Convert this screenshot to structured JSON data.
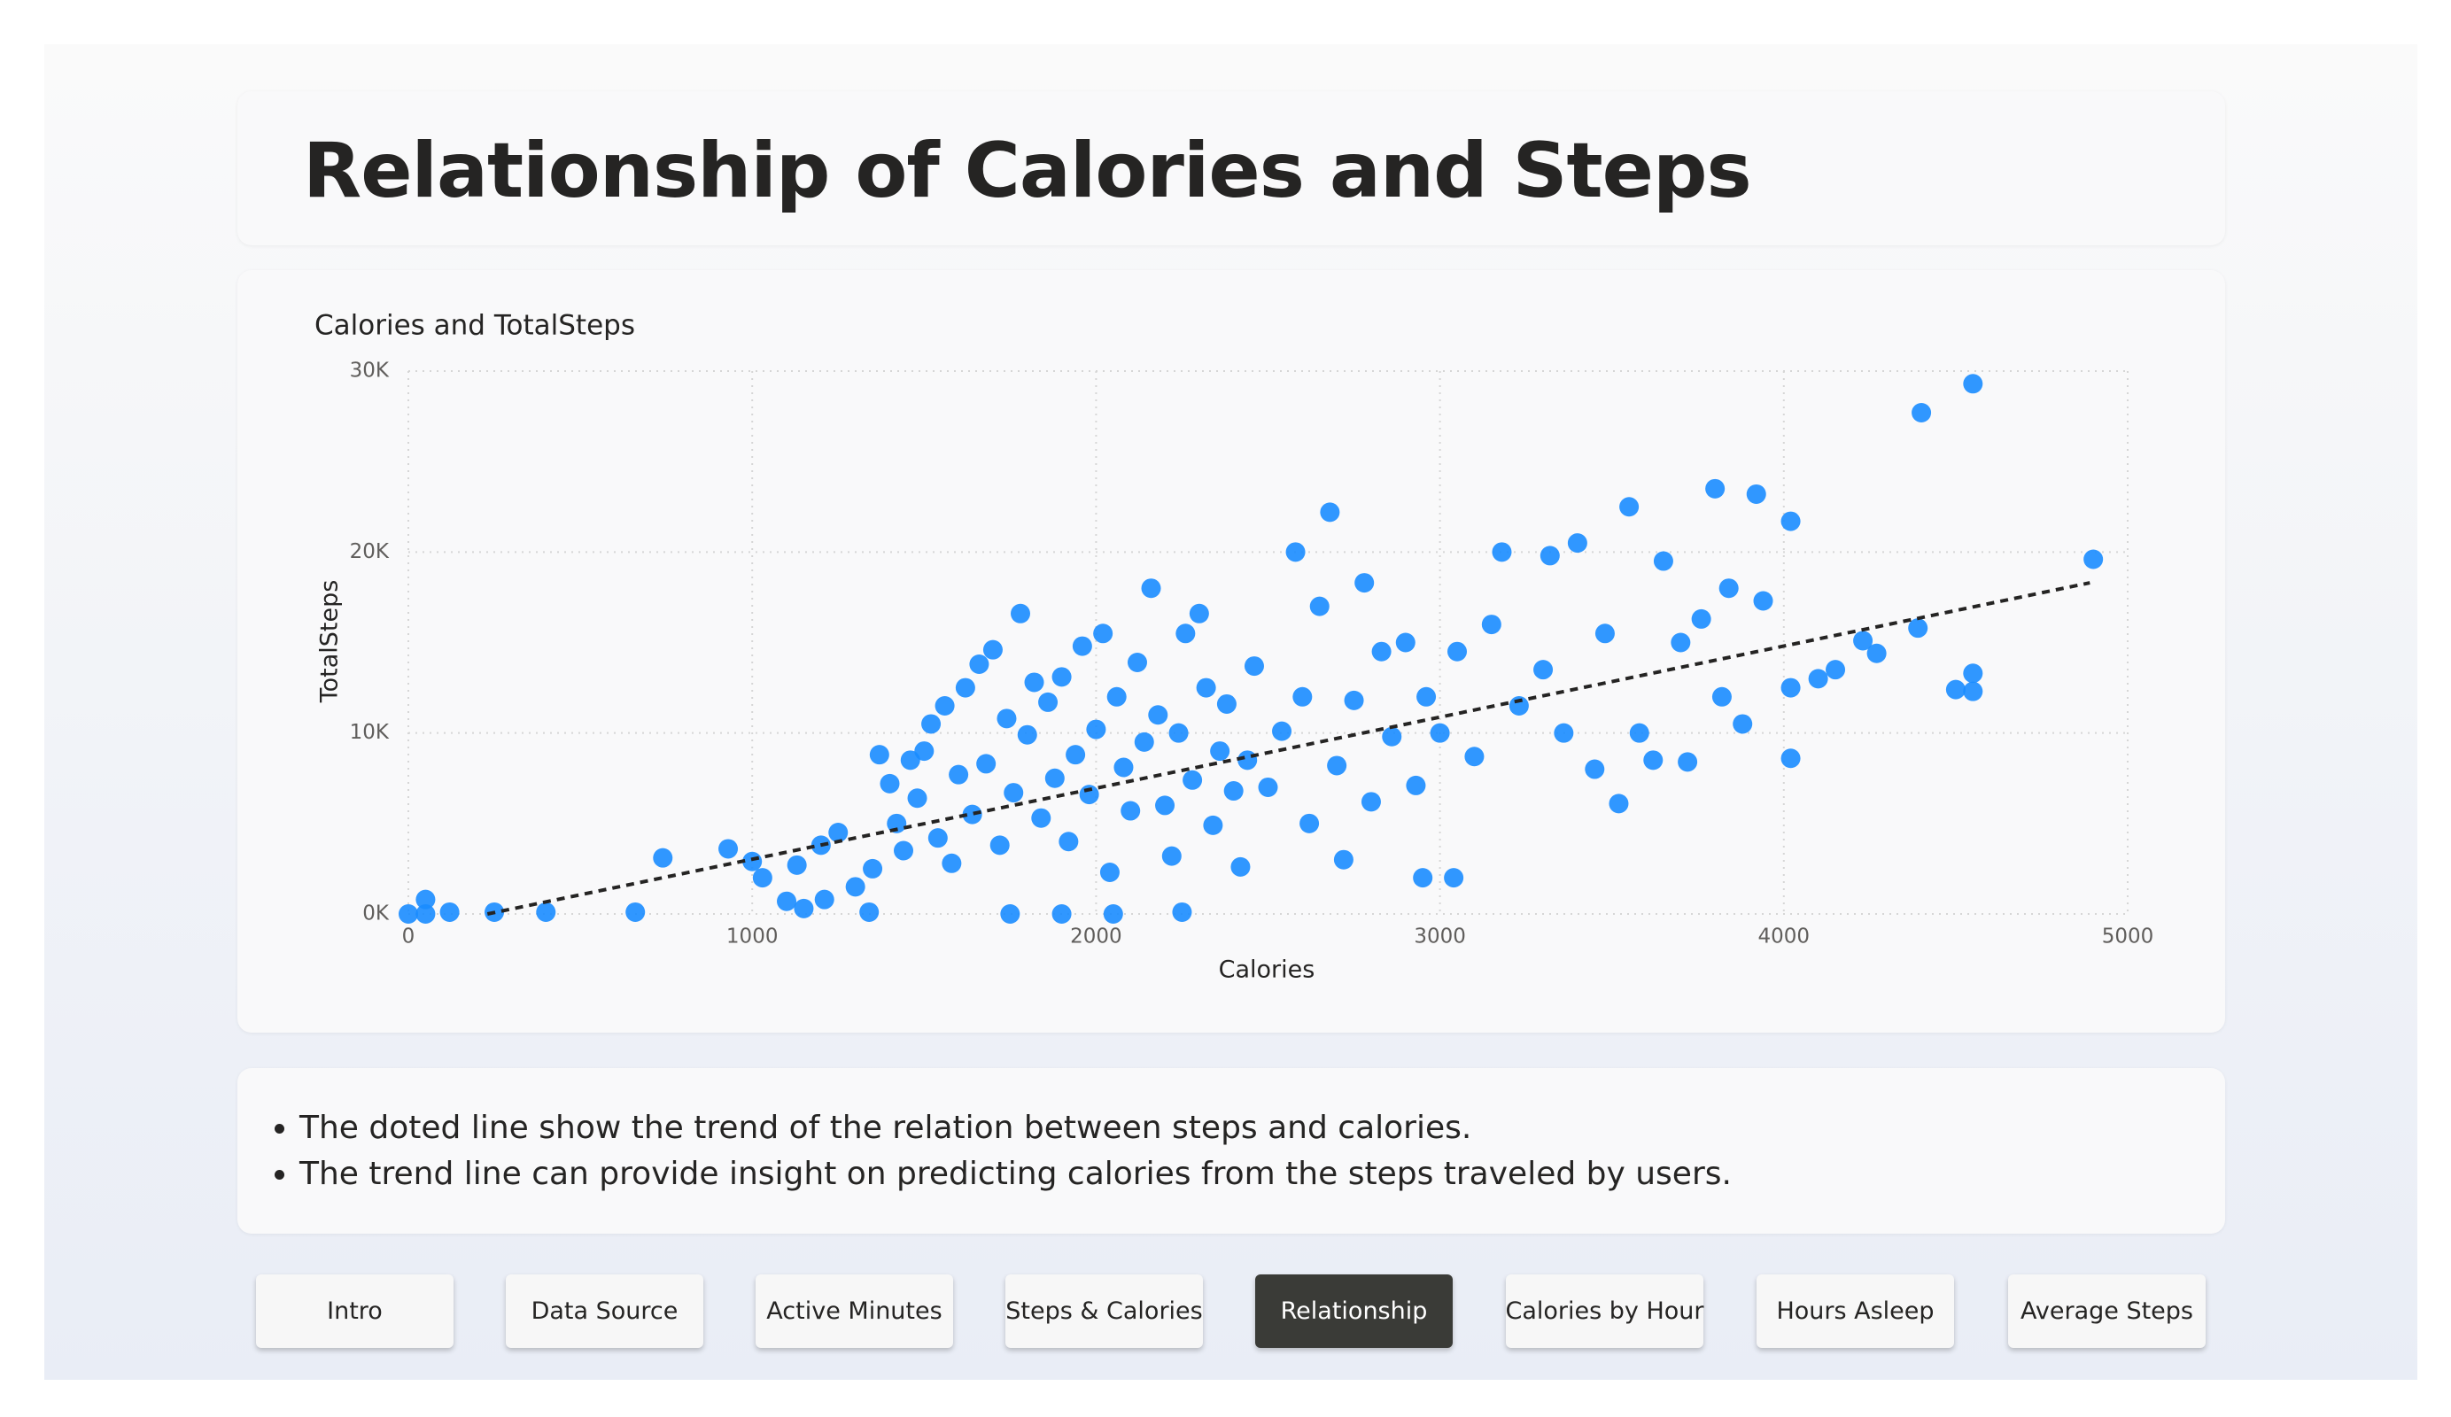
{
  "header": {
    "title": "Relationship of Calories and Steps"
  },
  "chart_data": {
    "type": "scatter",
    "title": "Calories and TotalSteps",
    "x_label": "Calories",
    "y_label": "TotalSteps",
    "color": "#1a8cff",
    "grid": true,
    "xlim": [
      0,
      5000
    ],
    "xticks": [
      0,
      1000,
      2000,
      3000,
      4000,
      5000
    ],
    "ylim": [
      0,
      30000
    ],
    "yticks": [
      {
        "value": 0,
        "label": "0K"
      },
      {
        "value": 10000,
        "label": "10K"
      },
      {
        "value": 20000,
        "label": "20K"
      },
      {
        "value": 30000,
        "label": "30K"
      }
    ],
    "x": [
      0,
      50,
      50,
      120,
      250,
      400,
      660,
      740,
      930,
      1000,
      1030,
      1100,
      1130,
      1150,
      1200,
      1210,
      1250,
      1300,
      1340,
      1350,
      1370,
      1400,
      1420,
      1440,
      1460,
      1480,
      1500,
      1520,
      1540,
      1560,
      1580,
      1600,
      1620,
      1640,
      1660,
      1680,
      1700,
      1720,
      1740,
      1760,
      1780,
      1800,
      1820,
      1840,
      1860,
      1880,
      1900,
      1920,
      1940,
      1960,
      1980,
      2000,
      2020,
      2040,
      2060,
      2080,
      2100,
      2120,
      2140,
      2160,
      2180,
      2200,
      2220,
      2240,
      2260,
      2280,
      2300,
      2320,
      2340,
      2360,
      2380,
      2400,
      2420,
      2440,
      2460,
      2500,
      2540,
      2580,
      2600,
      2620,
      2650,
      2680,
      2700,
      2720,
      2750,
      2780,
      2800,
      2830,
      2860,
      2900,
      2930,
      2960,
      2950,
      3040,
      3000,
      3050,
      3100,
      3150,
      3180,
      3230,
      3300,
      3320,
      3360,
      3400,
      3450,
      3480,
      3520,
      3550,
      3580,
      3620,
      3650,
      3700,
      3720,
      3760,
      3800,
      3820,
      3840,
      3880,
      3920,
      3940,
      4020,
      4020,
      4020,
      4100,
      4150,
      4230,
      4270,
      4390,
      4400,
      4500,
      4550,
      4550,
      4550,
      4900,
      2250,
      1750,
      1900,
      2050
    ],
    "values": [
      0,
      800,
      0,
      100,
      100,
      100,
      100,
      3100,
      3600,
      2900,
      2000,
      700,
      2700,
      300,
      3800,
      800,
      4500,
      1500,
      100,
      2500,
      8800,
      7200,
      5000,
      3500,
      8500,
      6400,
      9000,
      10500,
      4200,
      11500,
      2800,
      7700,
      12500,
      5500,
      13800,
      8300,
      14600,
      3800,
      10800,
      6700,
      16600,
      9900,
      12800,
      5300,
      11700,
      7500,
      13100,
      4000,
      8800,
      14800,
      6600,
      10200,
      15500,
      2300,
      12000,
      8100,
      5700,
      13900,
      9500,
      18000,
      11000,
      6000,
      3200,
      10000,
      15500,
      7400,
      16600,
      12500,
      4900,
      9000,
      11600,
      6800,
      2600,
      8500,
      13700,
      7000,
      10100,
      20000,
      12000,
      5000,
      17000,
      22200,
      8200,
      3000,
      11800,
      18300,
      6200,
      14500,
      9800,
      15000,
      7100,
      12000,
      2000,
      2000,
      10000,
      14500,
      8700,
      16000,
      20000,
      11500,
      13500,
      19800,
      10000,
      20500,
      8000,
      15500,
      6100,
      22500,
      10000,
      8500,
      19500,
      15000,
      8400,
      16300,
      23500,
      12000,
      18000,
      10500,
      23200,
      17300,
      21700,
      12500,
      8600,
      13000,
      13500,
      15100,
      14400,
      15800,
      27700,
      12400,
      29300,
      13300,
      12300,
      19600,
      100,
      0,
      0,
      0
    ],
    "trendline": {
      "x": [
        230,
        4890
      ],
      "y": [
        0,
        18300
      ]
    }
  },
  "notes": [
    "The doted line show the trend of the relation between steps and calories.",
    "The trend line can provide insight on predicting calories from the steps traveled by users."
  ],
  "nav": {
    "active": 4,
    "buttons": [
      "Intro",
      "Data Source",
      "Active Minutes",
      "Steps & Calories",
      "Relationship",
      "Calories by Hour",
      "Hours Asleep",
      "Average Steps"
    ]
  }
}
